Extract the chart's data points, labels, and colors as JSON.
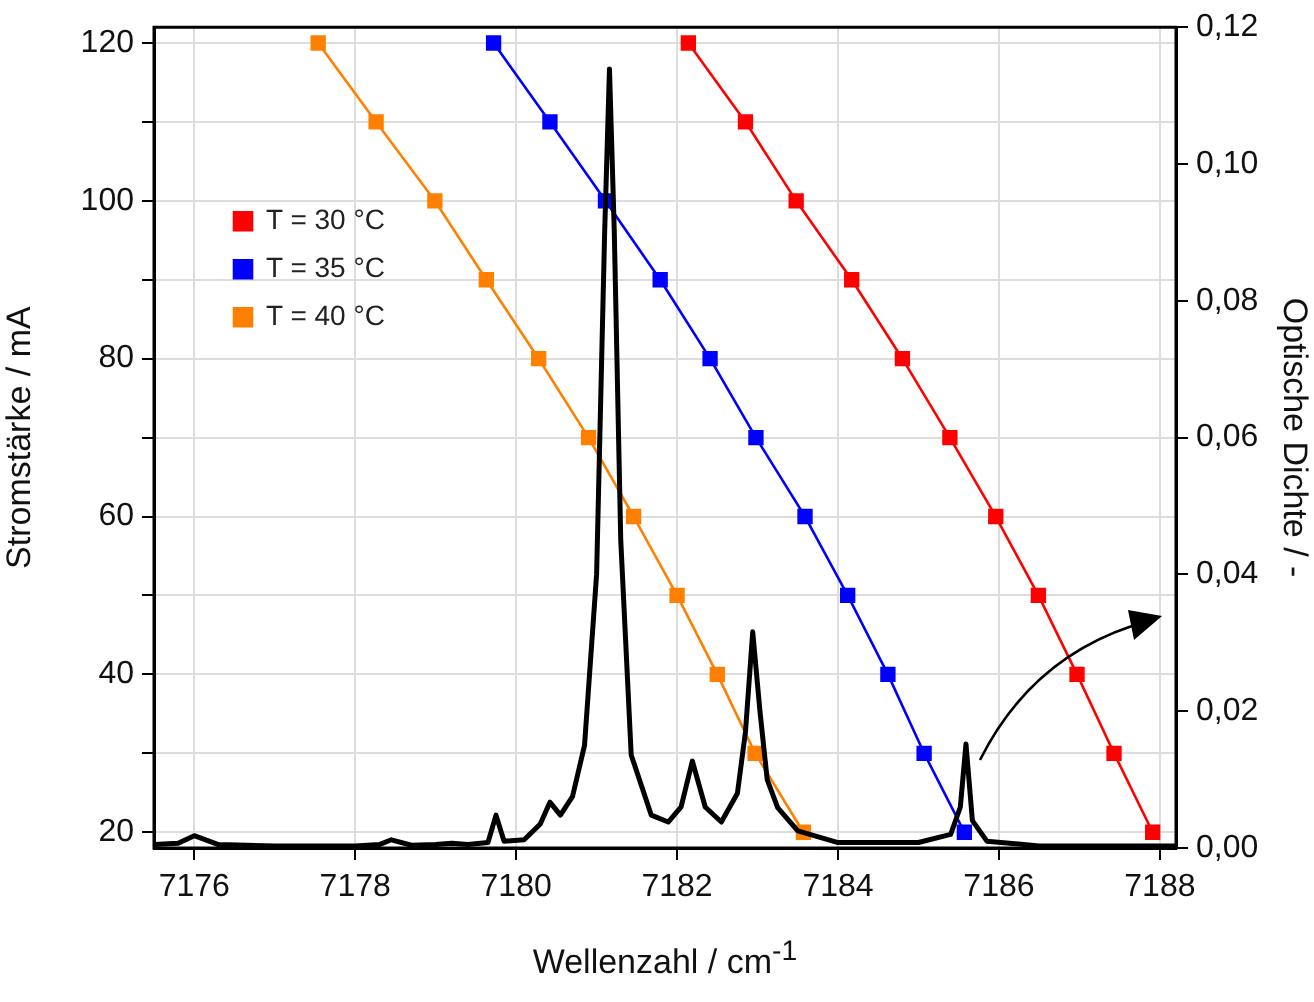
{
  "chart_data": {
    "type": "line",
    "xlabel": "Wellenzahl / cm$^{-1}$",
    "ylabel": "Stromstärke / mA",
    "y2label": "Optische Dichte / -",
    "xlim": [
      7175.5,
      7188.2
    ],
    "xticks": [
      7176,
      7178,
      7180,
      7182,
      7184,
      7186,
      7188
    ],
    "ylim": [
      18,
      122
    ],
    "yticks": [
      20,
      {
        "value": 30,
        "label": null
      },
      40,
      {
        "value": 50,
        "label": null
      },
      60,
      {
        "value": 70,
        "label": null
      },
      80,
      {
        "value": 90,
        "label": null
      },
      100,
      {
        "value": 110,
        "label": null
      },
      120
    ],
    "y2lim": [
      0,
      0.12
    ],
    "y2ticks": [
      {
        "value": 0,
        "label": "0,00"
      },
      {
        "value": 0.02,
        "label": "0,02"
      },
      {
        "value": 0.04,
        "label": "0,04"
      },
      {
        "value": 0.06,
        "label": "0,06"
      },
      {
        "value": 0.08,
        "label": "0,08"
      },
      {
        "value": 0.1,
        "label": "0,10"
      },
      {
        "value": 0.12,
        "label": "0,12"
      }
    ],
    "grid": true,
    "legend": "top left",
    "marker": "square",
    "line_style": "solid",
    "series": [
      {
        "name": "T = 30 °C",
        "color": "#ff0000",
        "x": [
          7182.14,
          7182.85,
          7183.48,
          7184.17,
          7184.8,
          7185.39,
          7185.96,
          7186.49,
          7186.97,
          7187.43,
          7187.91
        ],
        "values": [
          120,
          110,
          100,
          90,
          80,
          70,
          60,
          50,
          40,
          30,
          20
        ]
      },
      {
        "name": "T = 35 °C",
        "color": "#0000ff",
        "x": [
          7179.72,
          7180.42,
          7181.11,
          7181.79,
          7182.41,
          7182.98,
          7183.59,
          7184.12,
          7184.62,
          7185.07,
          7185.57
        ],
        "values": [
          120,
          110,
          100,
          90,
          80,
          70,
          60,
          50,
          40,
          30,
          20
        ]
      },
      {
        "name": "T = 40 °C",
        "color": "#ff8000",
        "x": [
          7177.54,
          7178.26,
          7178.99,
          7179.63,
          7180.28,
          7180.9,
          7181.46,
          7182.0,
          7182.5,
          7182.97,
          7183.57
        ],
        "values": [
          120,
          110,
          100,
          90,
          80,
          70,
          60,
          50,
          40,
          30,
          20
        ]
      },
      {
        "color": "#000000",
        "axis": "y2",
        "marker": "none",
        "x": [
          7175.5,
          7175.8,
          7176.0,
          7176.3,
          7177.0,
          7178.0,
          7178.3,
          7178.45,
          7178.7,
          7179.0,
          7179.2,
          7179.4,
          7179.65,
          7179.75,
          7179.85,
          7180.1,
          7180.3,
          7180.42,
          7180.55,
          7180.7,
          7180.85,
          7181.0,
          7181.1,
          7181.16,
          7181.22,
          7181.3,
          7181.43,
          7181.68,
          7181.89,
          7182.05,
          7182.19,
          7182.35,
          7182.55,
          7182.75,
          7182.85,
          7182.94,
          7183.03,
          7183.12,
          7183.25,
          7183.5,
          7184.0,
          7185.0,
          7185.4,
          7185.52,
          7185.59,
          7185.67,
          7185.85,
          7186.5,
          7187.5,
          7188.2
        ],
        "values": [
          0.0005,
          0.0007,
          0.0018,
          0.0005,
          0.0003,
          0.0003,
          0.0005,
          0.0012,
          0.0004,
          0.0005,
          0.0007,
          0.0005,
          0.0008,
          0.0048,
          0.001,
          0.0012,
          0.0035,
          0.0067,
          0.0048,
          0.0075,
          0.015,
          0.04,
          0.09,
          0.1139,
          0.09,
          0.045,
          0.0136,
          0.0048,
          0.0038,
          0.006,
          0.0127,
          0.006,
          0.0038,
          0.008,
          0.017,
          0.0316,
          0.02,
          0.01,
          0.0059,
          0.0025,
          0.0008,
          0.0008,
          0.002,
          0.006,
          0.0152,
          0.004,
          0.001,
          0.0003,
          0.0003,
          0.0003
        ]
      }
    ]
  }
}
